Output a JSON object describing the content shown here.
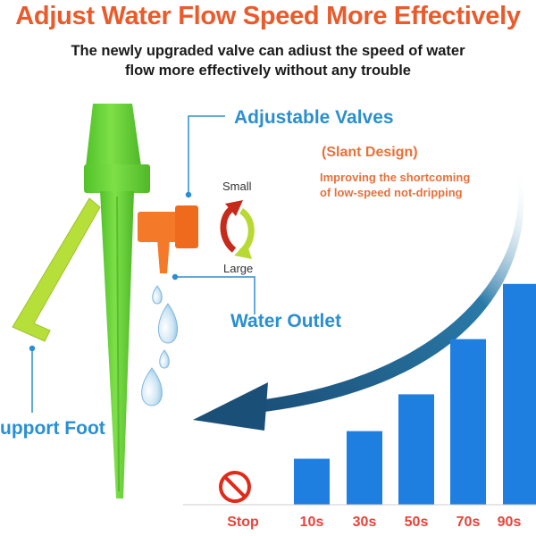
{
  "headline": "Adjust Water Flow Speed More Effectively",
  "subtitle_line1": "The newly upgraded valve can adiust the speed of water",
  "subtitle_line2": "flow more effectively without any trouble",
  "labels": {
    "adjustable_valves": "Adjustable Valves",
    "slant_design": "(Slant Design)",
    "improving_line1": "Improving the shortcoming",
    "improving_line2": "of low-speed not-dripping",
    "small": "Small",
    "large": "Large",
    "water_outlet": "Water Outlet",
    "support_foot": "upport Foot"
  },
  "colors": {
    "title_orange": "#ea5a2a",
    "label_blue": "#2a8fd0",
    "bar_blue": "#1f7fe0",
    "tick_red": "#e8423a",
    "stake_green": "#6ed43a",
    "foot_yellow_green": "#b7df3a",
    "valve_orange": "#f47a2a",
    "arrow_teal": "#1a5a80"
  },
  "chart_data": {
    "type": "bar",
    "categories": [
      "Stop",
      "10s",
      "30s",
      "50s",
      "70s",
      "90s"
    ],
    "values": [
      0,
      1,
      1.6,
      2.4,
      3.6,
      4.8
    ],
    "stop_icon": "prohibited-icon"
  }
}
